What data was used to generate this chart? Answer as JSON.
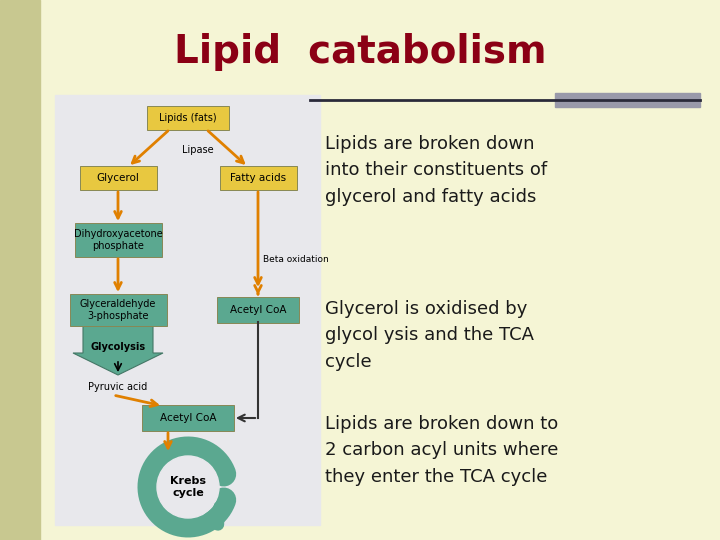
{
  "background_color": "#f5f5d5",
  "title": "Lipid  catabolism",
  "title_color": "#8b0015",
  "title_fontsize": 28,
  "text_font": "Comic Sans MS",
  "text_color": "#1a1a1a",
  "text_fontsize": 13,
  "bullet1": "Lipids are broken down\ninto their constituents of\nglycerol and fatty acids",
  "bullet2": "Glycerol is oxidised by\nglycol ysis and the TCA\ncycle",
  "bullet3": "Lipids are broken down to\n2 carbon acyl units where\nthey enter the TCA cycle",
  "separator_dark": "#2a2a3a",
  "separator_gray": "#9999aa",
  "diagram_bg": "#e8e8ec",
  "box_teal": "#5ba890",
  "box_yellow": "#e8c840",
  "arrow_orange": "#e08000",
  "left_bar_color": "#c8c890",
  "left_bar_width": 0.055
}
